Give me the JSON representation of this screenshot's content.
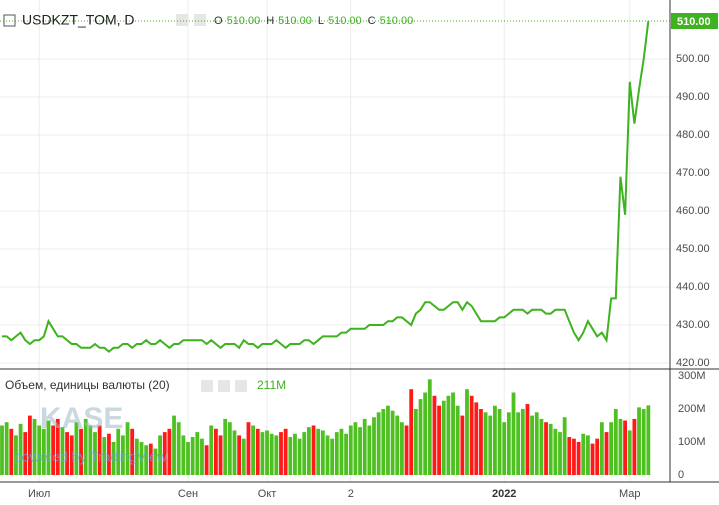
{
  "chart_data": [
    {
      "type": "line",
      "title": "USDKZT_TOM, D",
      "color": "#3fb21f",
      "legend": [
        {
          "label": "O",
          "value": "510.00"
        },
        {
          "label": "H",
          "value": "510.00"
        },
        {
          "label": "L",
          "value": "510.00"
        },
        {
          "label": "C",
          "value": "510.00"
        }
      ],
      "last_label": "510.00",
      "values": [
        427,
        427,
        426,
        427,
        428,
        426,
        425,
        426,
        426,
        427,
        431,
        429,
        427,
        427,
        426,
        425,
        425,
        424,
        424,
        424,
        425,
        424,
        424,
        423,
        424,
        424,
        425,
        425,
        424,
        425,
        425,
        426,
        425,
        425,
        426,
        425,
        424,
        425,
        425,
        426,
        426,
        426,
        426,
        426,
        425,
        426,
        425,
        424,
        425,
        425,
        425,
        424,
        426,
        425,
        425,
        424,
        425,
        425,
        425,
        426,
        425,
        424,
        425,
        425,
        425,
        426,
        426,
        425,
        426,
        427,
        427,
        427,
        427,
        428,
        428,
        429,
        429,
        429,
        429,
        430,
        430,
        430,
        430,
        431,
        431,
        432,
        432,
        431,
        430,
        433,
        434,
        436,
        436,
        435,
        434,
        434,
        435,
        436,
        436,
        434,
        436,
        435,
        433,
        431,
        431,
        431,
        431,
        432,
        432,
        433,
        434,
        434,
        434,
        433,
        434,
        434,
        434,
        433,
        433,
        434,
        434,
        434,
        431,
        428,
        426,
        428,
        431,
        429,
        427,
        428,
        426,
        437,
        437,
        469,
        459,
        494,
        483,
        492,
        500,
        510
      ],
      "ylim": [
        420,
        510
      ],
      "yticks": [
        {
          "value": 420,
          "label": "420.00"
        },
        {
          "value": 430,
          "label": "430.00"
        },
        {
          "value": 440,
          "label": "440.00"
        },
        {
          "value": 450,
          "label": "450.00"
        },
        {
          "value": 460,
          "label": "460.00"
        },
        {
          "value": 470,
          "label": "470.00"
        },
        {
          "value": 480,
          "label": "480.00"
        },
        {
          "value": 490,
          "label": "490.00"
        },
        {
          "value": 500,
          "label": "500.00"
        }
      ],
      "grid": true
    },
    {
      "type": "bar",
      "title": "Объем, единицы валюты (20)",
      "up_color": "#4fc021",
      "down_color": "#ff1a1a",
      "last_value": 211,
      "last_value_label": "211M",
      "values": [
        150,
        160,
        140,
        120,
        155,
        130,
        180,
        170,
        150,
        140,
        165,
        150,
        170,
        145,
        130,
        120,
        160,
        140,
        170,
        150,
        130,
        150,
        115,
        125,
        100,
        140,
        120,
        160,
        140,
        110,
        100,
        90,
        95,
        80,
        120,
        130,
        140,
        180,
        160,
        120,
        100,
        115,
        130,
        110,
        90,
        150,
        140,
        120,
        170,
        160,
        135,
        120,
        110,
        160,
        150,
        140,
        130,
        135,
        125,
        120,
        130,
        140,
        115,
        125,
        110,
        130,
        145,
        150,
        140,
        135,
        120,
        110,
        130,
        140,
        125,
        150,
        160,
        145,
        170,
        150,
        175,
        190,
        200,
        210,
        195,
        180,
        160,
        150,
        260,
        200,
        230,
        250,
        290,
        240,
        210,
        225,
        240,
        250,
        210,
        180,
        260,
        240,
        220,
        200,
        190,
        180,
        210,
        200,
        160,
        190,
        250,
        190,
        200,
        215,
        180,
        190,
        170,
        160,
        155,
        140,
        130,
        175,
        115,
        110,
        100,
        125,
        120,
        95,
        110,
        160,
        130,
        160,
        200,
        170,
        165,
        135,
        170,
        205,
        200,
        211
      ],
      "ylim": [
        0,
        300
      ],
      "yticks": [
        0,
        {
          "value": 100,
          "label": "100M"
        },
        {
          "value": 200,
          "label": "200M"
        },
        {
          "value": 300,
          "label": "300M"
        }
      ],
      "xticks": [
        {
          "value": 8,
          "label": "Июл"
        },
        {
          "value": 40,
          "label": "Сен"
        },
        {
          "value": 57,
          "label": "Окт"
        },
        {
          "value": 75,
          "label": "2"
        },
        {
          "value": 108,
          "label": "2022"
        },
        {
          "value": 135,
          "label": "Мар"
        }
      ],
      "watermark": "KASE",
      "watermark_sub": "powered by TradingView"
    }
  ]
}
